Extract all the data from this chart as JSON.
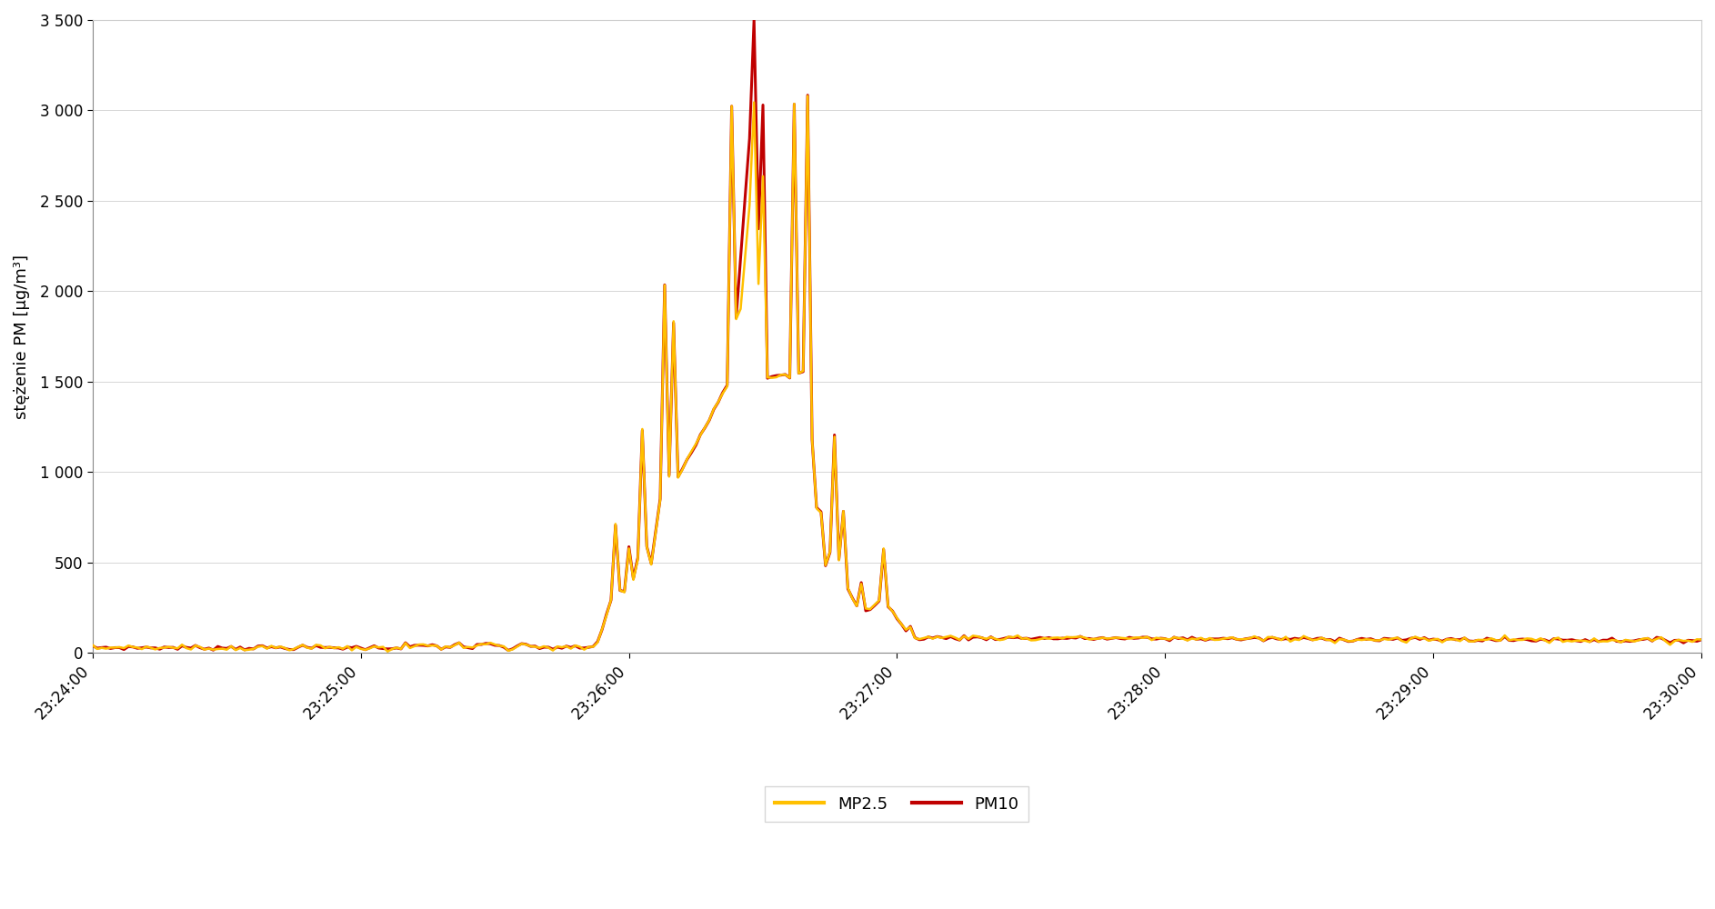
{
  "ylabel": "stężenie PM [μg/m³]",
  "ylim": [
    0,
    3500
  ],
  "yticks": [
    0.0,
    500.0,
    1000.0,
    1500.0,
    2000.0,
    2500.0,
    3000.0,
    3500.0
  ],
  "ytick_labels": [
    "0",
    "500",
    "1 000",
    "1 500",
    "2 000",
    "2 500",
    "3 000",
    "3 500"
  ],
  "xtick_labels": [
    "23:24:00",
    "23:25:00",
    "23:26:00",
    "23:27:00",
    "23:28:00",
    "23:29:00",
    "23:30:00"
  ],
  "pm25_color": "#FFC000",
  "pm10_color": "#C00000",
  "legend_labels": [
    "MP2.5",
    "PM10"
  ],
  "background_color": "#FFFFFF",
  "linewidth_pm25": 1.8,
  "linewidth_pm10": 2.2
}
